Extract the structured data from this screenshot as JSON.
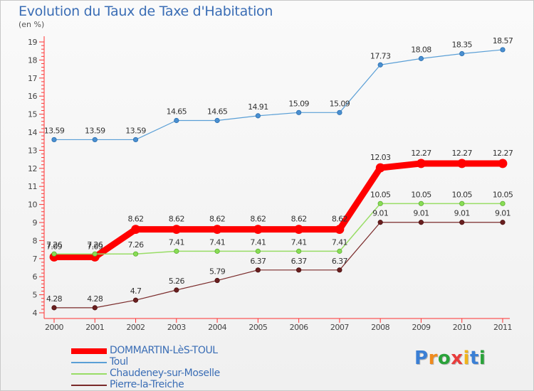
{
  "page": {
    "title": "Evolution du Taux de Taxe d'Habitation",
    "unit": "(en %)",
    "logo_text": "Proxiti",
    "logo_colors": [
      "#3a7fd5",
      "#f08a1c",
      "#2aa33a",
      "#e83c3c",
      "#f0b41c",
      "#3a7fd5",
      "#2aa33a"
    ]
  },
  "chart_data": {
    "type": "line",
    "title": "Evolution du Taux de Taxe d'Habitation",
    "ylabel": "(en %)",
    "xlabel": "",
    "ylim": [
      4,
      19
    ],
    "yticks": [
      "4",
      "5",
      "6",
      "7",
      "8",
      "9",
      "10",
      "11",
      "12",
      "13",
      "14",
      "15",
      "16",
      "17",
      "18",
      "19"
    ],
    "grid": false,
    "legend_position": "bottom-left",
    "x": [
      "2000",
      "2001",
      "2002",
      "2003",
      "2004",
      "2005",
      "2006",
      "2007",
      "2008",
      "2009",
      "2010",
      "2011"
    ],
    "series": [
      {
        "name": "DOMMARTIN-LèS-TOUL",
        "color": "#ff0000",
        "values": [
          7.09,
          7.09,
          8.62,
          8.62,
          8.62,
          8.62,
          8.62,
          8.62,
          12.03,
          12.27,
          12.27,
          12.27
        ],
        "labels": [
          "7.09",
          "7.09",
          "8.62",
          "8.62",
          "8.62",
          "8.62",
          "8.62",
          "8.62",
          "12.03",
          "12.27",
          "12.27",
          "12.27"
        ]
      },
      {
        "name": "Toul",
        "color": "#5a9fd6",
        "values": [
          13.59,
          13.59,
          13.59,
          14.65,
          14.65,
          14.91,
          15.09,
          15.09,
          17.73,
          18.08,
          18.35,
          18.57
        ],
        "labels": [
          "13.59",
          "13.59",
          "13.59",
          "14.65",
          "14.65",
          "14.91",
          "15.09",
          "15.09",
          "17.73",
          "18.08",
          "18.35",
          "18.57"
        ]
      },
      {
        "name": "Chaudeney-sur-Moselle",
        "color": "#99dd66",
        "values": [
          7.26,
          7.26,
          7.26,
          7.41,
          7.41,
          7.41,
          7.41,
          7.41,
          10.05,
          10.05,
          10.05,
          10.05
        ],
        "labels": [
          "7.26",
          "7.26",
          "7.26",
          "7.41",
          "7.41",
          "7.41",
          "7.41",
          "7.41",
          "10.05",
          "10.05",
          "10.05",
          "10.05"
        ]
      },
      {
        "name": "Pierre-la-Treiche",
        "color": "#7a2a2a",
        "values": [
          4.28,
          4.28,
          4.7,
          5.26,
          5.79,
          6.37,
          6.37,
          6.37,
          9.01,
          9.01,
          9.01,
          9.01
        ],
        "labels": [
          "4.28",
          "4.28",
          "4.7",
          "5.26",
          "5.79",
          "6.37",
          "6.37",
          "6.37",
          "9.01",
          "9.01",
          "9.01",
          "9.01"
        ]
      }
    ]
  }
}
